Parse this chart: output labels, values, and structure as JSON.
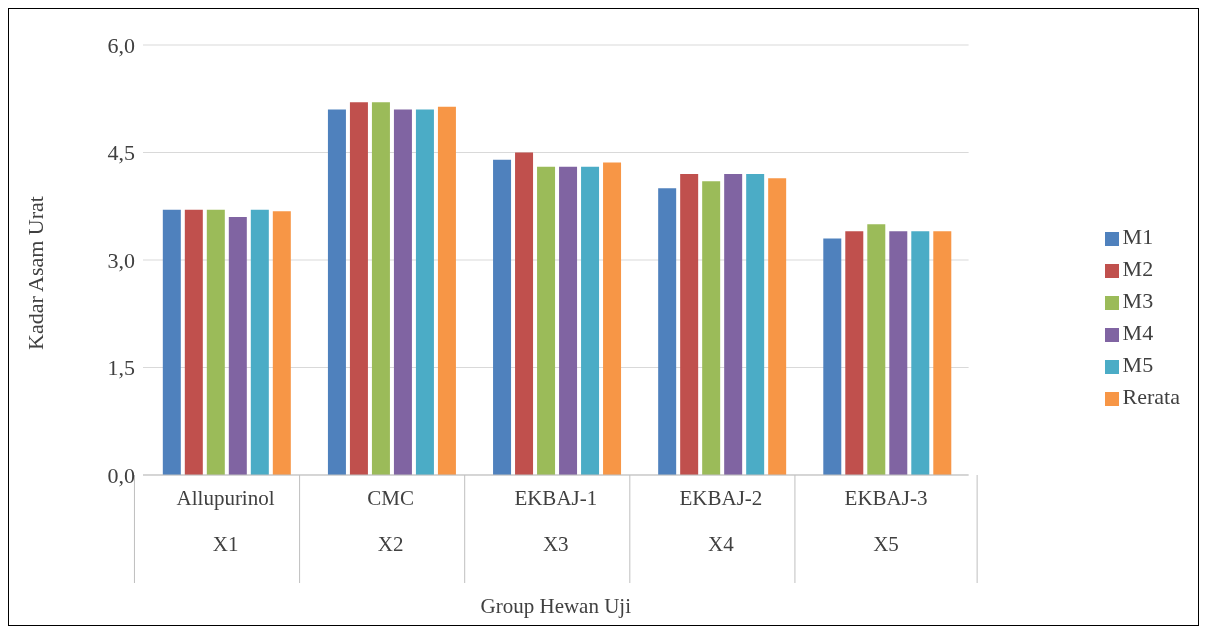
{
  "chart_data": {
    "type": "bar",
    "xlabel": "Group Hewan Uji",
    "ylabel": "Kadar Asam Urat",
    "categories": [
      "Allupurinol\nX1",
      "CMC\nX2",
      "EKBAJ-1\nX3",
      "EKBAJ-2\nX4",
      "EKBAJ-3\nX5"
    ],
    "series": [
      {
        "name": "M1",
        "color": "#4f81bd",
        "values": [
          3.7,
          5.1,
          4.4,
          4.0,
          3.3
        ]
      },
      {
        "name": "M2",
        "color": "#c0504d",
        "values": [
          3.7,
          5.2,
          4.5,
          4.2,
          3.4
        ]
      },
      {
        "name": "M3",
        "color": "#9bbb59",
        "values": [
          3.7,
          5.2,
          4.3,
          4.1,
          3.5
        ]
      },
      {
        "name": "M4",
        "color": "#8064a2",
        "values": [
          3.6,
          5.1,
          4.3,
          4.2,
          3.4
        ]
      },
      {
        "name": "M5",
        "color": "#4bacc6",
        "values": [
          3.7,
          5.1,
          4.3,
          4.2,
          3.4
        ]
      },
      {
        "name": "Rerata",
        "color": "#f79646",
        "values": [
          3.68,
          5.14,
          4.36,
          4.14,
          3.4
        ]
      }
    ],
    "ylim": [
      0,
      6
    ],
    "yticks": [
      {
        "value": 0,
        "label": "0,0"
      },
      {
        "value": 1.5,
        "label": "1,5"
      },
      {
        "value": 3,
        "label": "3,0"
      },
      {
        "value": 4.5,
        "label": "4,5"
      },
      {
        "value": 6,
        "label": "6,0"
      }
    ],
    "grid": "y",
    "legend": "right"
  }
}
